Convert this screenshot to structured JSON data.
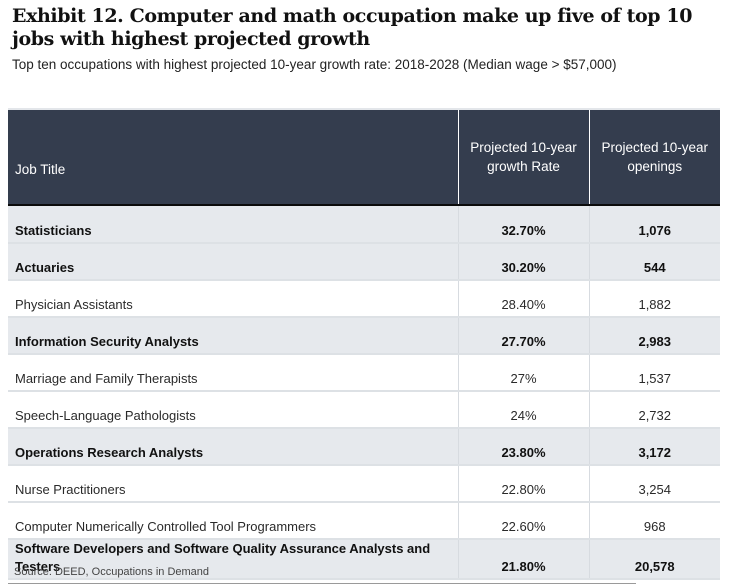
{
  "title": "Exhibit 12. Computer and math occupation make up five of top 10 jobs with highest projected growth",
  "subtitle": "Top ten occupations with highest projected 10-year growth rate: 2018-2028 (Median wage > $57,000)",
  "table": {
    "headers": [
      "Job Title",
      "Projected 10-year growth Rate",
      "Projected 10-year openings"
    ],
    "rows": [
      {
        "job": "Statisticians",
        "growth": "32.70%",
        "openings": "1,076",
        "highlighted": true
      },
      {
        "job": "Actuaries",
        "growth": "30.20%",
        "openings": "544",
        "highlighted": true
      },
      {
        "job": "Physician Assistants",
        "growth": "28.40%",
        "openings": "1,882",
        "highlighted": false
      },
      {
        "job": "Information Security Analysts",
        "growth": "27.70%",
        "openings": "2,983",
        "highlighted": true
      },
      {
        "job": "Marriage and Family Therapists",
        "growth": "27%",
        "openings": "1,537",
        "highlighted": false
      },
      {
        "job": "Speech-Language Pathologists",
        "growth": "24%",
        "openings": "2,732",
        "highlighted": false
      },
      {
        "job": "Operations Research Analysts",
        "growth": "23.80%",
        "openings": "3,172",
        "highlighted": true
      },
      {
        "job": "Nurse Practitioners",
        "growth": "22.80%",
        "openings": "3,254",
        "highlighted": false
      },
      {
        "job": "Computer Numerically Controlled Tool Programmers",
        "growth": "22.60%",
        "openings": "968",
        "highlighted": false
      },
      {
        "job": "Software Developers and Software Quality Assurance Analysts and Testers",
        "growth": "21.80%",
        "openings": "20,578",
        "highlighted": true
      }
    ]
  },
  "source": "Source: DEED, Occupations in Demand",
  "colors": {
    "header_bg": "#343d4e",
    "highlight_row_bg": "#e6e9ed"
  }
}
